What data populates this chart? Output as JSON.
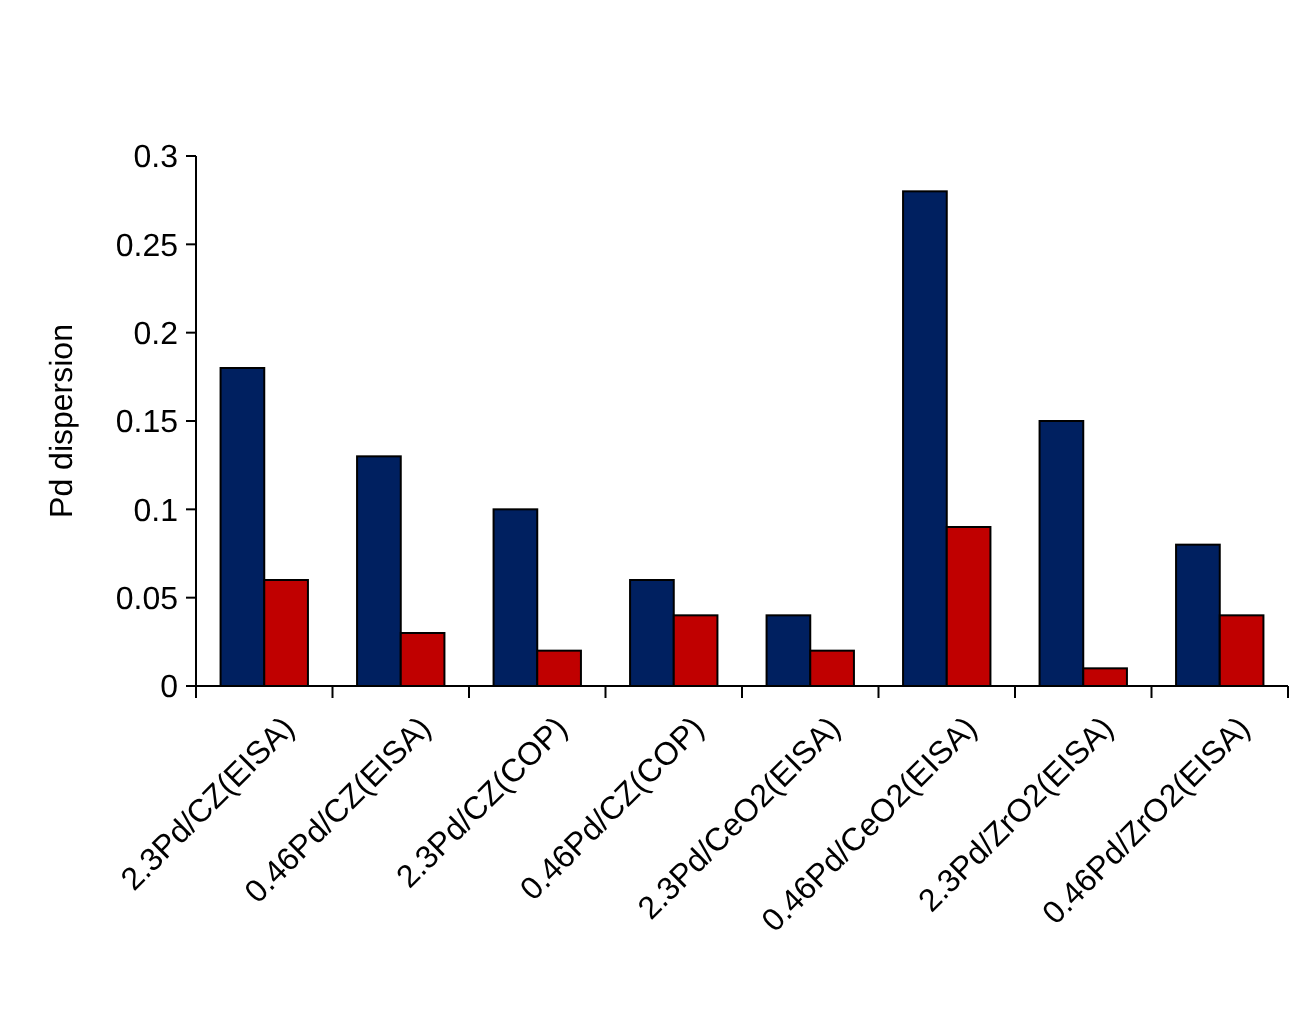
{
  "chart_data": {
    "type": "bar",
    "ylabel": "Pd dispersion",
    "categories": [
      "2.3Pd/CZ(EISA)",
      "0.46Pd/CZ(EISA)",
      "2.3Pd/CZ(COP)",
      "0.46Pd/CZ(COP)",
      "2.3Pd/CeO2(EISA)",
      "0.46Pd/CeO2(EISA)",
      "2.3Pd/ZrO2(EISA)",
      "0.46Pd/ZrO2(EISA)"
    ],
    "series": [
      {
        "color": "#002060",
        "values": [
          0.18,
          0.13,
          0.1,
          0.06,
          0.04,
          0.28,
          0.15,
          0.08
        ]
      },
      {
        "color": "#c00000",
        "values": [
          0.06,
          0.03,
          0.02,
          0.04,
          0.02,
          0.09,
          0.01,
          0.04
        ]
      }
    ],
    "ylim": [
      0,
      0.3
    ],
    "yticks": [
      {
        "value": 0,
        "label": "0"
      },
      0.05,
      0.1,
      0.15,
      0.2,
      0.25,
      0.3
    ]
  }
}
